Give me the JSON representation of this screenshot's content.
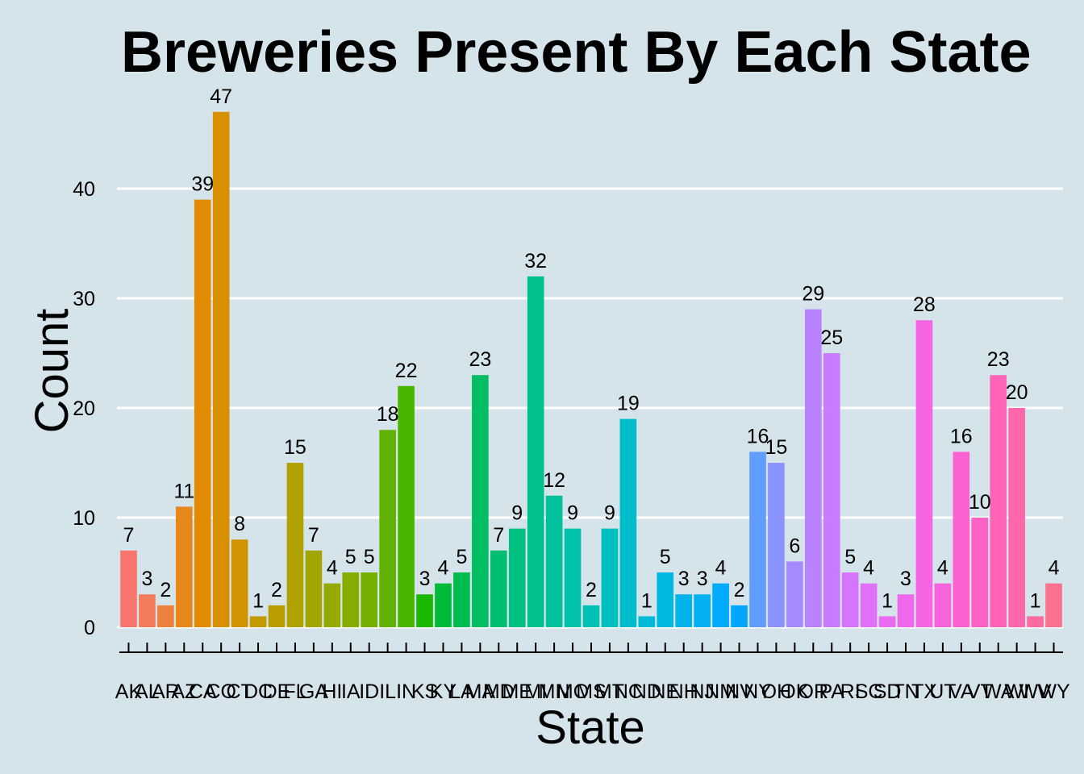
{
  "chart_data": {
    "type": "bar",
    "title": "Breweries Present By Each State",
    "xlabel": "State",
    "ylabel": "Count",
    "ylim": [
      0,
      48
    ],
    "yticks": [
      0,
      10,
      20,
      30,
      40
    ],
    "grid": true,
    "legend": "none",
    "background": "#d5e4eb",
    "categories": [
      "AK",
      "AL",
      "AR",
      "AZ",
      "CA",
      "CO",
      "CT",
      "DC",
      "DE",
      "FL",
      "GA",
      "HI",
      "IA",
      "ID",
      "IL",
      "IN",
      "KS",
      "KY",
      "LA",
      "MA",
      "MD",
      "ME",
      "MI",
      "MN",
      "MO",
      "MS",
      "MT",
      "NC",
      "ND",
      "NE",
      "NH",
      "NJ",
      "NM",
      "NV",
      "NY",
      "OH",
      "OK",
      "OR",
      "PA",
      "RI",
      "SC",
      "SD",
      "TN",
      "TX",
      "UT",
      "VA",
      "VT",
      "WA",
      "WI",
      "WV",
      "WY"
    ],
    "values": [
      7,
      3,
      2,
      11,
      39,
      47,
      8,
      1,
      2,
      15,
      7,
      4,
      5,
      5,
      18,
      22,
      3,
      4,
      5,
      23,
      7,
      9,
      32,
      12,
      9,
      2,
      9,
      19,
      1,
      5,
      3,
      3,
      4,
      2,
      16,
      15,
      6,
      29,
      25,
      5,
      4,
      1,
      3,
      28,
      4,
      16,
      10,
      23,
      20,
      1,
      4
    ],
    "colors": [
      "#F8766D",
      "#F37B59",
      "#ED813E",
      "#E7861B",
      "#E08B00",
      "#D89000",
      "#CF9400",
      "#C59900",
      "#BB9D00",
      "#AFA100",
      "#A3A500",
      "#95A900",
      "#86AC00",
      "#75AF00",
      "#61B200",
      "#48B500",
      "#1CB800",
      "#00BA38",
      "#00BC4F",
      "#00BE61",
      "#00BF71",
      "#00C081",
      "#00C08E",
      "#00C19C",
      "#00C1A9",
      "#00C0B5",
      "#00BFC1",
      "#00BDCC",
      "#00BBD7",
      "#00B8E1",
      "#00B4EA",
      "#00B0F3",
      "#00ABFB",
      "#00A5FF",
      "#619CFF",
      "#8B93FF",
      "#A58AFF",
      "#B983FF",
      "#C97BFF",
      "#D575FE",
      "#E070F8",
      "#E86BF2",
      "#EF67EA",
      "#F564E3",
      "#FA62DB",
      "#FD61D1",
      "#FF62C6",
      "#FF64B9",
      "#FF67AC",
      "#FF6B9E",
      "#FC718F"
    ]
  }
}
